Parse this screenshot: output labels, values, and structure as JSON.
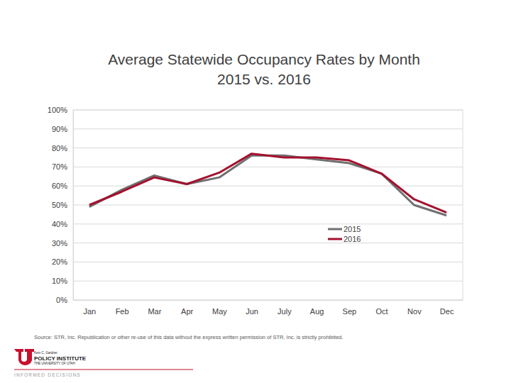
{
  "chart_data": {
    "type": "line",
    "title": "Average Statewide Occupancy Rates by Month",
    "subtitle": "2015 vs. 2016",
    "categories": [
      "Jan",
      "Feb",
      "Mar",
      "Apr",
      "May",
      "Jun",
      "July",
      "Aug",
      "Sep",
      "Oct",
      "Nov",
      "Dec"
    ],
    "series": [
      {
        "name": "2015",
        "color": "#707070",
        "values": [
          49,
          58,
          65.5,
          61,
          64.5,
          76,
          76,
          74,
          72,
          66.5,
          50,
          44.5
        ]
      },
      {
        "name": "2016",
        "color": "#a3122e",
        "values": [
          50,
          57,
          64.5,
          61,
          67,
          77,
          75,
          75,
          73.5,
          66.5,
          53,
          46
        ]
      }
    ],
    "ylim": [
      0,
      100
    ],
    "yticks": [
      {
        "value": 0,
        "label": "0%"
      },
      {
        "value": 10,
        "label": "10%"
      },
      {
        "value": 20,
        "label": "20%"
      },
      {
        "value": 30,
        "label": "30%"
      },
      {
        "value": 40,
        "label": "40%"
      },
      {
        "value": 50,
        "label": "50%"
      },
      {
        "value": 60,
        "label": "60%"
      },
      {
        "value": 70,
        "label": "70%"
      },
      {
        "value": 80,
        "label": "80%"
      },
      {
        "value": 90,
        "label": "90%"
      },
      {
        "value": 100,
        "label": "100%"
      }
    ],
    "grid": true,
    "legend": "right",
    "annotations": [
      "Source: STR, Inc. Republication or other re-use of this data without the express written permission of STR, Inc. is strictly prohibited.",
      "Kem C. Gardner",
      "POLICY INSTITUTE",
      "THE UNIVERSITY OF UTAH",
      "INFORMED DECISIONS"
    ]
  }
}
